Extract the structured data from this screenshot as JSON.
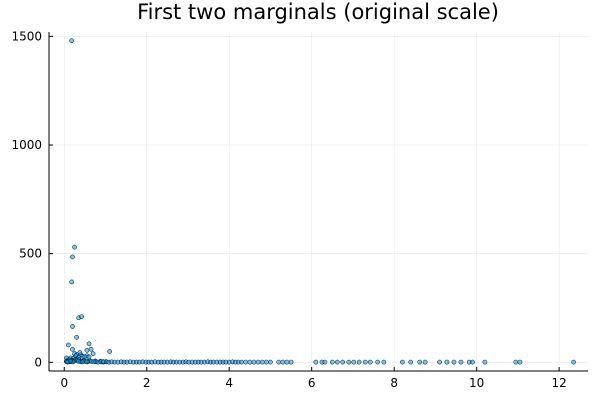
{
  "chart_data": {
    "type": "scatter",
    "title": "First two marginals (original scale)",
    "xlabel": "",
    "ylabel": "",
    "xlim": [
      -0.37,
      12.7
    ],
    "ylim": [
      -40,
      1520
    ],
    "x_ticks": [
      0,
      2,
      4,
      6,
      8,
      10,
      12
    ],
    "y_ticks": [
      0,
      500,
      1000,
      1500
    ],
    "grid": true,
    "legend": "none",
    "marker_color": "#009AFA",
    "marker_edge_color": "#000000",
    "series": [
      {
        "x": [
          0.18,
          0.25,
          0.2,
          0.18,
          0.35,
          0.42,
          0.2,
          0.1,
          0.3,
          0.6,
          0.65,
          0.55,
          0.7,
          0.55,
          0.6,
          0.4,
          0.2,
          0.05,
          1.1,
          0.38,
          0.25,
          0.3,
          0.28,
          0.45,
          0.5,
          0.35,
          0.15,
          0.22,
          0.32,
          0.12,
          0.08,
          0.18,
          0.27,
          0.36,
          0.48,
          0.62,
          0.75,
          0.88,
          0.05,
          0.14,
          0.23,
          0.42,
          0.58,
          0.06,
          0.11,
          0.17,
          0.24,
          0.31,
          0.39,
          0.47,
          0.56,
          0.66,
          0.77,
          0.89,
          1.02,
          0.08,
          0.21,
          0.34,
          0.53,
          0.72,
          0.95,
          0.15,
          0.44,
          0.82,
          0.95,
          1.02,
          1.08,
          1.15,
          1.22,
          1.3,
          1.38,
          1.45,
          1.52,
          1.6,
          1.68,
          1.75,
          1.82,
          1.9,
          1.98,
          2.05,
          2.12,
          2.2,
          2.28,
          2.35,
          2.42,
          2.5,
          2.58,
          2.65,
          2.72,
          2.8,
          2.88,
          2.95,
          3.02,
          3.1,
          3.18,
          3.25,
          3.32,
          3.4,
          3.48,
          3.55,
          3.62,
          3.7,
          3.78,
          3.85,
          3.92,
          4.0,
          4.08,
          4.15,
          4.22,
          4.3,
          4.4,
          4.5,
          4.6,
          4.7,
          4.8,
          4.9,
          5.0,
          5.2,
          5.3,
          5.4,
          5.5,
          6.1,
          6.25,
          6.32,
          6.5,
          6.62,
          6.75,
          6.9,
          7.02,
          7.15,
          7.3,
          7.42,
          7.6,
          7.75,
          8.2,
          8.4,
          8.62,
          8.75,
          9.1,
          9.28,
          9.45,
          9.62,
          9.82,
          9.9,
          10.2,
          10.95,
          11.05,
          12.35
        ],
        "y": [
          1480,
          530,
          485,
          370,
          205,
          210,
          165,
          80,
          115,
          85,
          60,
          55,
          40,
          30,
          25,
          35,
          60,
          20,
          50,
          45,
          40,
          35,
          30,
          28,
          25,
          22,
          20,
          18,
          15,
          12,
          10,
          8,
          14,
          11,
          9,
          7,
          6,
          5,
          4,
          3,
          6,
          5,
          4,
          3,
          2,
          4,
          6,
          8,
          3,
          5,
          2,
          4,
          3,
          2,
          3,
          1,
          2,
          5,
          3,
          2,
          1,
          6,
          2,
          1,
          3,
          2,
          1,
          2,
          1,
          1,
          2,
          1,
          1,
          2,
          1,
          1,
          1,
          2,
          1,
          1,
          1,
          2,
          1,
          1,
          1,
          1,
          2,
          1,
          1,
          1,
          1,
          2,
          1,
          1,
          1,
          1,
          1,
          1,
          2,
          1,
          1,
          1,
          1,
          1,
          1,
          1,
          2,
          1,
          1,
          1,
          1,
          1,
          1,
          1,
          1,
          1,
          1,
          1,
          1,
          1,
          1,
          1,
          1,
          1,
          1,
          1,
          1,
          1,
          1,
          1,
          1,
          1,
          1,
          1,
          1,
          1,
          1,
          1,
          1,
          1,
          1,
          1,
          1,
          1,
          1,
          1,
          1,
          1
        ]
      }
    ]
  }
}
